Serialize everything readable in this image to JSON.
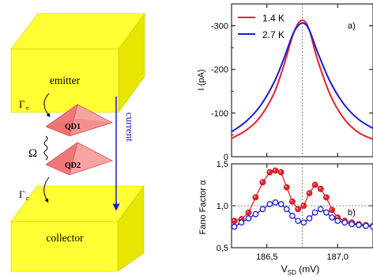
{
  "schematic": {
    "emitter_label": "emitter",
    "collector_label": "collector",
    "qd1_label": "QD1",
    "qd2_label": "QD2",
    "gamma_e": "Γ",
    "gamma_e_sub": "e",
    "gamma_c": "Γ",
    "gamma_c_sub": "c",
    "omega": "Ω",
    "current_label": "current",
    "colors": {
      "block": "#ffff33",
      "block_side": "#e6e600",
      "pyramid": "#f28c8c",
      "arrow": "#1a1ad6"
    }
  },
  "chart_data": [
    {
      "type": "line",
      "panel": "a)",
      "ylabel": "I (pA)",
      "ylim": [
        0,
        -350
      ],
      "y_ticks": [
        0,
        -100,
        -200,
        -300
      ],
      "y_tick_labels": [
        "0",
        "-100",
        "-200",
        "-300"
      ],
      "xlim": [
        186.25,
        187.25
      ],
      "grid": false,
      "legend": {
        "placement": "top-left",
        "entries": [
          "1.4 K",
          "2.7 K"
        ]
      },
      "reference_line_x": 186.75,
      "series": [
        {
          "name": "1.4 K",
          "color": "#e8202a",
          "x": [
            186.25,
            186.35,
            186.45,
            186.55,
            186.62,
            186.68,
            186.72,
            186.76,
            186.8,
            186.86,
            186.95,
            187.05,
            187.15,
            187.25
          ],
          "y": [
            -42,
            -60,
            -90,
            -145,
            -210,
            -275,
            -305,
            -312,
            -290,
            -220,
            -140,
            -85,
            -55,
            -40
          ]
        },
        {
          "name": "2.7 K",
          "color": "#1c1cd2",
          "x": [
            186.25,
            186.35,
            186.45,
            186.55,
            186.62,
            186.68,
            186.72,
            186.76,
            186.8,
            186.86,
            186.95,
            187.05,
            187.15,
            187.25
          ],
          "y": [
            -57,
            -80,
            -115,
            -170,
            -225,
            -278,
            -300,
            -306,
            -290,
            -238,
            -170,
            -118,
            -85,
            -65
          ]
        }
      ]
    },
    {
      "type": "scatter",
      "panel": "b)",
      "ylabel": "Fano Factor α",
      "xlabel": "V_SD (mV)",
      "ylim": [
        0.5,
        1.5
      ],
      "y_ticks": [
        0.5,
        1.0,
        1.5
      ],
      "y_tick_labels": [
        "0,5",
        "1,0",
        "1,5"
      ],
      "xlim": [
        186.25,
        187.25
      ],
      "x_ticks": [
        186.5,
        187.0
      ],
      "x_tick_labels": [
        "186,5",
        "187,0"
      ],
      "reference_line_y": 1.0,
      "reference_line_x": 186.75,
      "series": [
        {
          "name": "1.4 K",
          "color": "#e8202a",
          "marker": "filled",
          "x": [
            186.27,
            186.32,
            186.37,
            186.42,
            186.47,
            186.52,
            186.56,
            186.6,
            186.64,
            186.68,
            186.72,
            186.76,
            186.8,
            186.84,
            186.88,
            186.92,
            186.96,
            187.0,
            187.05,
            187.1,
            187.15,
            187.2,
            187.25
          ],
          "y": [
            0.82,
            0.84,
            0.92,
            1.1,
            1.28,
            1.4,
            1.42,
            1.4,
            1.22,
            1.05,
            0.96,
            1.0,
            1.15,
            1.25,
            1.2,
            1.1,
            0.95,
            0.86,
            0.82,
            0.8,
            0.78,
            0.77,
            0.76
          ]
        },
        {
          "name": "2.7 K",
          "color": "#1c1cd2",
          "marker": "open",
          "x": [
            186.27,
            186.32,
            186.37,
            186.42,
            186.47,
            186.52,
            186.56,
            186.6,
            186.64,
            186.68,
            186.72,
            186.76,
            186.8,
            186.84,
            186.88,
            186.92,
            186.96,
            187.0,
            187.05,
            187.1,
            187.15,
            187.2,
            187.25
          ],
          "y": [
            0.75,
            0.8,
            0.85,
            0.9,
            0.96,
            1.02,
            1.04,
            1.02,
            0.96,
            0.88,
            0.82,
            0.8,
            0.85,
            0.92,
            0.96,
            0.92,
            0.86,
            0.82,
            0.8,
            0.78,
            0.77,
            0.76,
            0.75
          ]
        }
      ]
    }
  ]
}
